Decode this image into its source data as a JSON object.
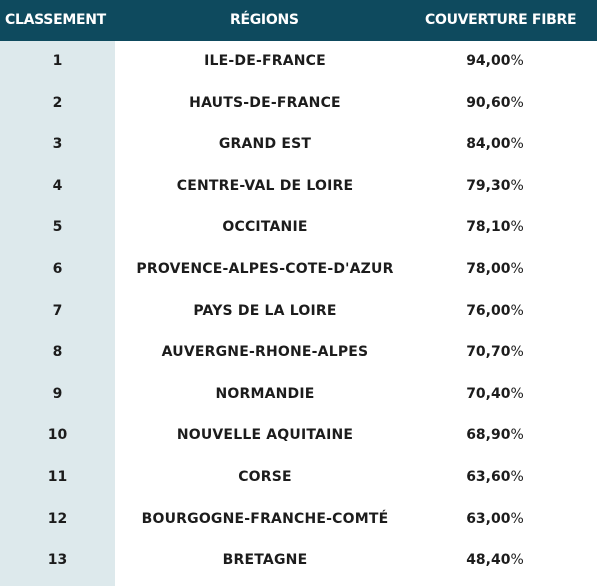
{
  "header": {
    "rank": "CLASSEMENT",
    "region": "RÉGIONS",
    "coverage": "COUVERTURE FIBRE"
  },
  "rows": [
    {
      "rank": "1",
      "region": "ILE-DE-FRANCE",
      "coverage": "94,00",
      "unit": "%"
    },
    {
      "rank": "2",
      "region": "HAUTS-DE-FRANCE",
      "coverage": "90,60",
      "unit": "%"
    },
    {
      "rank": "3",
      "region": "GRAND EST",
      "coverage": "84,00",
      "unit": "%"
    },
    {
      "rank": "4",
      "region": "CENTRE-VAL DE LOIRE",
      "coverage": "79,30",
      "unit": "%"
    },
    {
      "rank": "5",
      "region": "OCCITANIE",
      "coverage": "78,10",
      "unit": "%"
    },
    {
      "rank": "6",
      "region": "PROVENCE-ALPES-COTE-D'AZUR",
      "coverage": "78,00",
      "unit": "%"
    },
    {
      "rank": "7",
      "region": "PAYS DE LA LOIRE",
      "coverage": "76,00",
      "unit": "%"
    },
    {
      "rank": "8",
      "region": "AUVERGNE-RHONE-ALPES",
      "coverage": "70,70",
      "unit": "%"
    },
    {
      "rank": "9",
      "region": "NORMANDIE",
      "coverage": "70,40",
      "unit": "%"
    },
    {
      "rank": "10",
      "region": "NOUVELLE AQUITAINE",
      "coverage": "68,90",
      "unit": "%"
    },
    {
      "rank": "11",
      "region": "CORSE",
      "coverage": "63,60",
      "unit": "%"
    },
    {
      "rank": "12",
      "region": "BOURGOGNE-FRANCHE-COMTÉ",
      "coverage": "63,00",
      "unit": "%"
    },
    {
      "rank": "13",
      "region": "BRETAGNE",
      "coverage": "48,40",
      "unit": "%"
    }
  ],
  "colors": {
    "header_bg": "#0e4a5e",
    "rank_column_bg": "#dde9ec",
    "text": "#1c1c1c"
  }
}
